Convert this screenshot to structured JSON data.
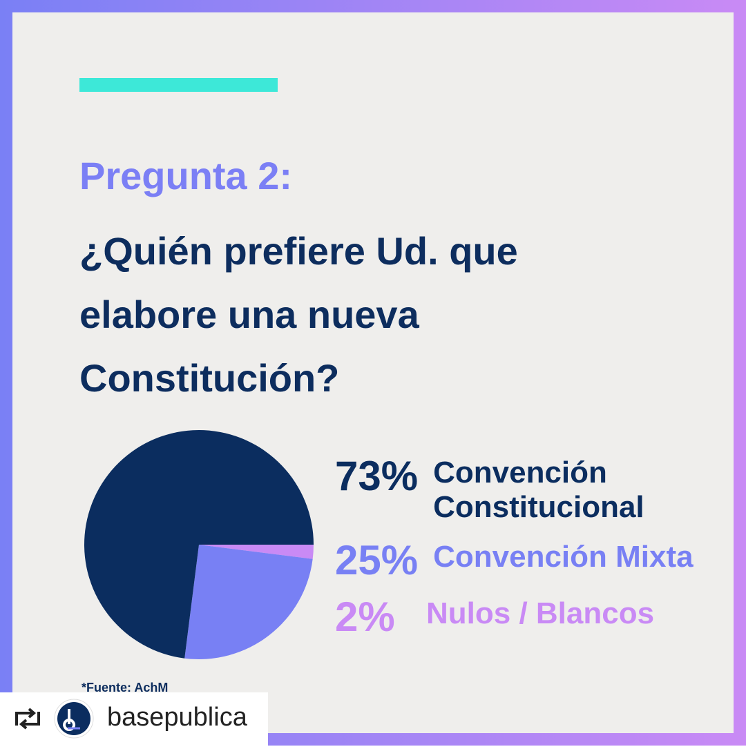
{
  "chart_data": {
    "type": "pie",
    "title": "Pregunta 2:",
    "subtitle": "¿Quién prefiere Ud. que elabore una nueva Constitución?",
    "categories": [
      "Convención Constitucional",
      "Convención Mixta",
      "Nulos / Blancos"
    ],
    "values": [
      73,
      25,
      2
    ],
    "value_labels": [
      "73%",
      "25%",
      "2%"
    ],
    "colors": [
      "#0b2d5f",
      "#7880f4",
      "#c98af5"
    ],
    "source": "*Fuente: AchM"
  },
  "repost_user": "basepublica"
}
